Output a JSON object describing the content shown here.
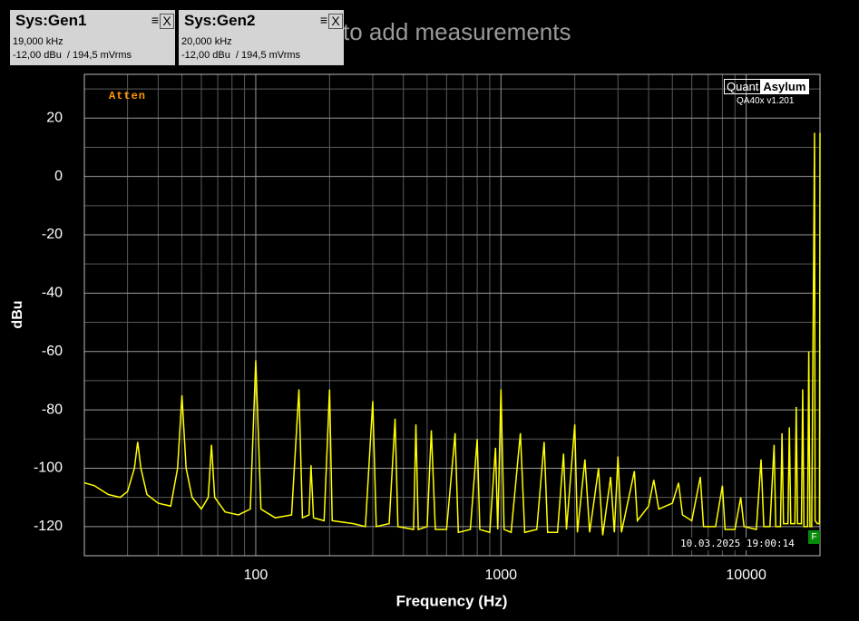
{
  "ui": {
    "background_hint": "to add measurements",
    "panels": [
      {
        "title": "Sys:Gen1",
        "freq": "19,000 kHz",
        "level": "-12,00 dBu  / 194,5 mVrms"
      },
      {
        "title": "Sys:Gen2",
        "freq": "20,000 kHz",
        "level": "-12,00 dBu  / 194,5 mVrms"
      }
    ],
    "atten": "Atten",
    "logo_left": "Quant",
    "logo_right": "Asylum",
    "version": "QA40x v1.201",
    "timestamp": "10.03.2025 19:00:14",
    "flag": "F"
  },
  "chart_data": {
    "type": "line",
    "x_label": "Frequency (Hz)",
    "y_label": "dBu",
    "xscale": "log",
    "xlim": [
      20,
      20000
    ],
    "ylim": [
      -130,
      35
    ],
    "xticks": [
      100,
      1000,
      10000
    ],
    "xminor": [
      30,
      40,
      50,
      60,
      70,
      80,
      90,
      200,
      300,
      400,
      500,
      600,
      700,
      800,
      900,
      2000,
      3000,
      4000,
      5000,
      6000,
      7000,
      8000,
      9000
    ],
    "yticks": [
      20,
      0,
      -20,
      -40,
      -60,
      -80,
      -100,
      -120
    ],
    "yminor": [
      30,
      10,
      -10,
      -30,
      -50,
      -70,
      -90,
      -110,
      -130
    ],
    "grid": true,
    "series": [
      {
        "color": "#ffff00",
        "x": [
          20,
          22,
          25,
          28,
          30,
          32,
          33,
          34,
          36,
          40,
          45,
          48,
          50,
          52,
          55,
          60,
          64,
          66,
          68,
          75,
          85,
          95,
          100,
          105,
          120,
          140,
          150,
          155,
          165,
          168,
          172,
          190,
          200,
          205,
          250,
          280,
          300,
          310,
          350,
          370,
          380,
          440,
          450,
          460,
          500,
          520,
          540,
          600,
          650,
          670,
          750,
          800,
          820,
          900,
          950,
          970,
          1000,
          1030,
          1100,
          1200,
          1250,
          1400,
          1500,
          1550,
          1700,
          1800,
          1850,
          2000,
          2050,
          2200,
          2300,
          2500,
          2600,
          2800,
          2900,
          3000,
          3100,
          3500,
          3600,
          4000,
          4200,
          4400,
          5000,
          5300,
          5500,
          6000,
          6500,
          6700,
          7500,
          8000,
          8200,
          9000,
          9500,
          9800,
          11000,
          11500,
          11800,
          12500,
          13000,
          13200,
          13800,
          14000,
          14200,
          14800,
          15000,
          15200,
          15800,
          16000,
          16200,
          16800,
          17000,
          17200,
          17800,
          18000,
          18200,
          18500,
          19000,
          19100,
          19500,
          19900,
          20000
        ],
        "values": [
          -105,
          -106,
          -109,
          -110,
          -108,
          -100,
          -91,
          -100,
          -109,
          -112,
          -113,
          -100,
          -75,
          -100,
          -110,
          -114,
          -110,
          -92,
          -110,
          -115,
          -116,
          -114,
          -63,
          -114,
          -117,
          -116,
          -73,
          -117,
          -116,
          -99,
          -117,
          -118,
          -73,
          -118,
          -119,
          -120,
          -77,
          -120,
          -119,
          -83,
          -120,
          -121,
          -85,
          -121,
          -120,
          -87,
          -121,
          -121,
          -88,
          -122,
          -121,
          -90,
          -121,
          -122,
          -93,
          -121,
          -73,
          -121,
          -122,
          -88,
          -122,
          -121,
          -91,
          -122,
          -122,
          -95,
          -121,
          -85,
          -122,
          -97,
          -122,
          -100,
          -123,
          -103,
          -122,
          -96,
          -122,
          -101,
          -118,
          -113,
          -104,
          -114,
          -112,
          -105,
          -116,
          -118,
          -103,
          -120,
          -120,
          -106,
          -121,
          -121,
          -110,
          -120,
          -121,
          -97,
          -120,
          -120,
          -92,
          -120,
          -120,
          -88,
          -119,
          -119,
          -86,
          -119,
          -119,
          -79,
          -119,
          -119,
          -73,
          -120,
          -120,
          -60,
          -120,
          -120,
          15,
          -118,
          -119,
          -119,
          15
        ]
      }
    ]
  }
}
